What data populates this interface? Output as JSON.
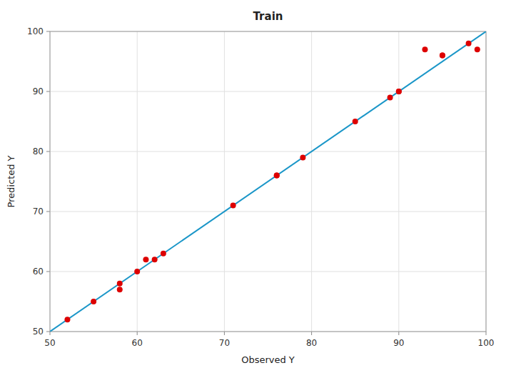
{
  "chart_data": {
    "type": "scatter",
    "title": "Train",
    "xlabel": "Observed Y",
    "ylabel": "Predicted Y",
    "xlim": [
      50,
      100
    ],
    "ylim": [
      50,
      100
    ],
    "xticks": [
      50,
      60,
      70,
      80,
      90,
      100
    ],
    "yticks": [
      50,
      60,
      70,
      80,
      90,
      100
    ],
    "grid": true,
    "series": [
      {
        "type": "line",
        "color": "#1a96c8",
        "x": [
          50,
          100
        ],
        "values": [
          50,
          100
        ]
      },
      {
        "type": "scatter",
        "color": "#dd0000",
        "x": [
          52,
          55,
          58,
          58,
          60,
          61,
          62,
          63,
          71,
          76,
          76,
          79,
          85,
          89,
          90,
          90,
          93,
          95,
          95,
          98,
          99
        ],
        "values": [
          52,
          55,
          57,
          58,
          60,
          62,
          62,
          63,
          71,
          76,
          76,
          79,
          85,
          89,
          90,
          90,
          97,
          96,
          96,
          98,
          97
        ]
      }
    ]
  }
}
